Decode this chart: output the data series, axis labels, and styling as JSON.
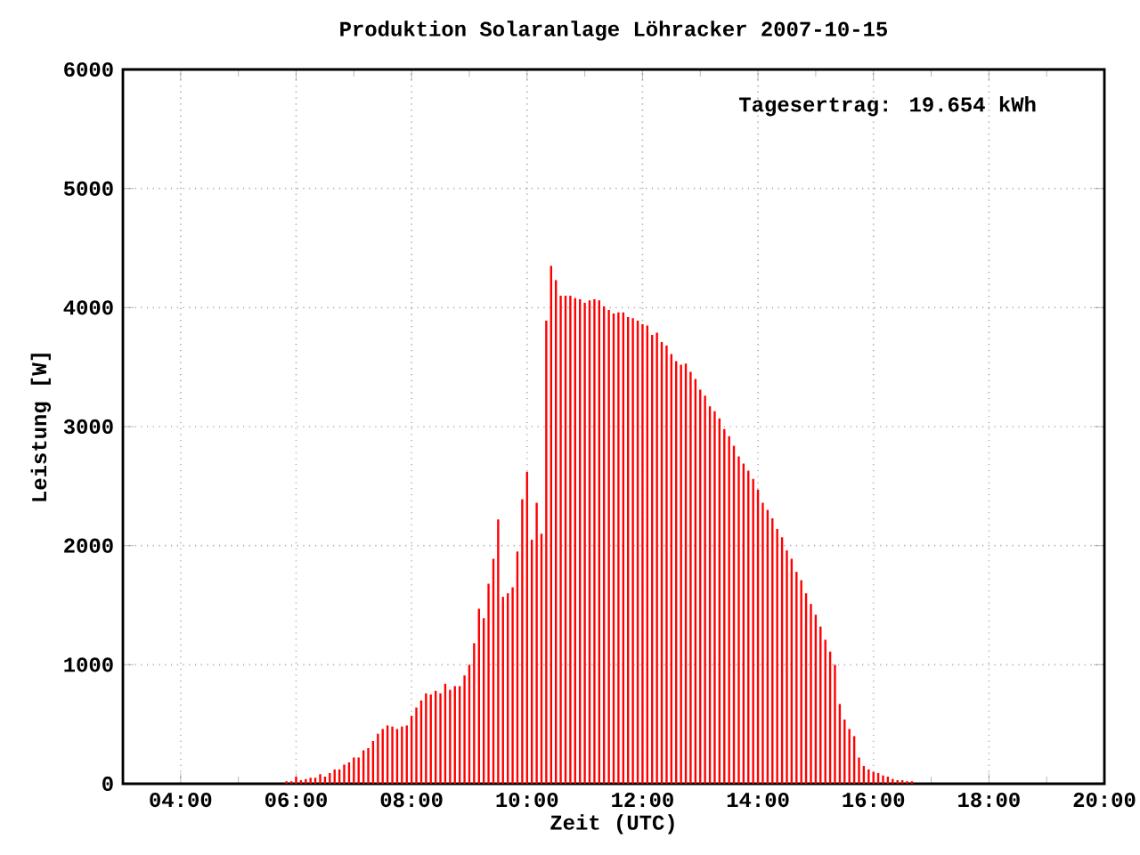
{
  "chart_data": {
    "type": "bar",
    "title": "Produktion Solaranlage Löhracker 2007-10-15",
    "xlabel": "Zeit (UTC)",
    "ylabel": "Leistung [W]",
    "annotations": [
      "Tagesertrag: 19.654 kWh"
    ],
    "x": [
      5.833,
      5.917,
      6,
      6.083,
      6.167,
      6.25,
      6.333,
      6.417,
      6.5,
      6.583,
      6.667,
      6.75,
      6.833,
      6.917,
      7,
      7.083,
      7.167,
      7.25,
      7.333,
      7.417,
      7.5,
      7.583,
      7.667,
      7.75,
      7.833,
      7.917,
      8,
      8.083,
      8.167,
      8.25,
      8.333,
      8.417,
      8.5,
      8.583,
      8.667,
      8.75,
      8.833,
      8.917,
      9,
      9.083,
      9.167,
      9.25,
      9.333,
      9.417,
      9.5,
      9.583,
      9.667,
      9.75,
      9.833,
      9.917,
      10,
      10.083,
      10.167,
      10.25,
      10.333,
      10.417,
      10.5,
      10.583,
      10.667,
      10.75,
      10.833,
      10.917,
      11,
      11.083,
      11.167,
      11.25,
      11.333,
      11.417,
      11.5,
      11.583,
      11.667,
      11.75,
      11.833,
      11.917,
      12,
      12.083,
      12.167,
      12.25,
      12.333,
      12.417,
      12.5,
      12.583,
      12.667,
      12.75,
      12.833,
      12.917,
      13,
      13.083,
      13.167,
      13.25,
      13.333,
      13.417,
      13.5,
      13.583,
      13.667,
      13.75,
      13.833,
      13.917,
      14,
      14.083,
      14.167,
      14.25,
      14.333,
      14.417,
      14.5,
      14.583,
      14.667,
      14.75,
      14.833,
      14.917,
      15,
      15.083,
      15.167,
      15.25,
      15.333,
      15.417,
      15.5,
      15.583,
      15.667,
      15.75,
      15.833,
      15.917,
      16,
      16.083,
      16.167,
      16.25,
      16.333,
      16.417,
      16.5,
      16.583,
      16.667
    ],
    "values": [
      20,
      20,
      60,
      30,
      40,
      50,
      50,
      80,
      60,
      90,
      120,
      120,
      160,
      180,
      220,
      220,
      280,
      300,
      360,
      420,
      460,
      490,
      480,
      460,
      480,
      490,
      570,
      640,
      700,
      760,
      750,
      780,
      760,
      840,
      790,
      820,
      820,
      910,
      1000,
      1180,
      1470,
      1390,
      1680,
      1890,
      2220,
      1570,
      1600,
      1650,
      1950,
      2390,
      2620,
      2050,
      2360,
      2100,
      3890,
      4350,
      4230,
      4100,
      4100,
      4100,
      4080,
      4070,
      4040,
      4060,
      4070,
      4060,
      4010,
      3980,
      3950,
      3960,
      3960,
      3920,
      3910,
      3890,
      3860,
      3850,
      3770,
      3790,
      3710,
      3680,
      3610,
      3550,
      3520,
      3530,
      3460,
      3400,
      3310,
      3260,
      3170,
      3130,
      3070,
      2980,
      2920,
      2840,
      2750,
      2690,
      2630,
      2560,
      2470,
      2360,
      2300,
      2230,
      2140,
      2070,
      1960,
      1890,
      1780,
      1710,
      1600,
      1510,
      1420,
      1320,
      1210,
      1110,
      1000,
      670,
      540,
      460,
      400,
      220,
      150,
      120,
      100,
      90,
      70,
      60,
      40,
      30,
      30,
      20,
      20
    ],
    "color": "#ff0000",
    "xlim": [
      3,
      20
    ],
    "ylim": [
      0,
      6000
    ],
    "xticks": [
      {
        "value": 4,
        "label": "04:00"
      },
      {
        "value": 6,
        "label": "06:00"
      },
      {
        "value": 8,
        "label": "08:00"
      },
      {
        "value": 10,
        "label": "10:00"
      },
      {
        "value": 12,
        "label": "12:00"
      },
      {
        "value": 14,
        "label": "14:00"
      },
      {
        "value": 16,
        "label": "16:00"
      },
      {
        "value": 18,
        "label": "18:00"
      },
      {
        "value": 20,
        "label": "20:00"
      }
    ],
    "yticks": [
      0,
      1000,
      2000,
      3000,
      4000,
      5000,
      6000
    ],
    "grid": true
  }
}
